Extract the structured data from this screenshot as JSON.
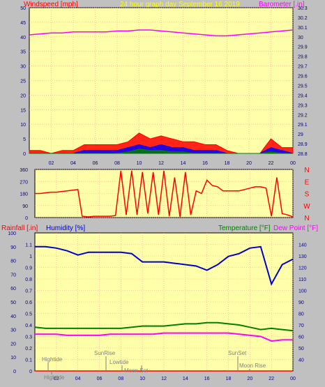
{
  "header": {
    "left_title": "Windspeed [mph]",
    "center_title": "24 hour graph day   September 16 2019",
    "right_title": "Barometer [.in]"
  },
  "colors": {
    "background": "#c0c0c0",
    "plot_background": "#ffffaa",
    "grid": "#ff9999",
    "wind": "#ff0000",
    "gust_peak": "#0000ff",
    "wind_low": "#008000",
    "barometer": "#ff00ff",
    "direction": "#ff0000",
    "humidity": "#0000cc",
    "temperature": "#008000",
    "dew_point": "#ff00ff",
    "rainfall": "#ff0000",
    "center_title": "#ffff00",
    "tick_label": "#000080",
    "tide_label": "#808080"
  },
  "chart_data": [
    {
      "type": "area",
      "title": "24 hour graph day   September 16 2019",
      "ylabel": "Windspeed [mph]",
      "y2label": "Barometer [.in]",
      "ylim": [
        0,
        50
      ],
      "y2lim": [
        28.8,
        30.3
      ],
      "yticks": [
        "0",
        "5",
        "10",
        "15",
        "20",
        "25",
        "30",
        "35",
        "40",
        "45",
        "50"
      ],
      "y2ticks": [
        "28.8",
        "28.9",
        "29",
        "29.1",
        "29.2",
        "29.3",
        "29.4",
        "29.5",
        "29.6",
        "29.7",
        "29.8",
        "29.9",
        "30",
        "30.1",
        "30.2",
        "30.3"
      ],
      "xticks": [
        "02",
        "04",
        "06",
        "08",
        "10",
        "12",
        "14",
        "16",
        "18",
        "20",
        "22",
        "00"
      ],
      "grid": true,
      "series": [
        {
          "name": "Barometer [.in]",
          "x": [
            0,
            1,
            2,
            3,
            4,
            5,
            6,
            7,
            8,
            9,
            10,
            11,
            12,
            13,
            14,
            15,
            16,
            17,
            18,
            19,
            20,
            21,
            22,
            23,
            24
          ],
          "values": [
            30.02,
            30.03,
            30.04,
            30.04,
            30.05,
            30.05,
            30.05,
            30.05,
            30.06,
            30.06,
            30.07,
            30.07,
            30.06,
            30.05,
            30.04,
            30.03,
            30.02,
            30.01,
            30.01,
            30.02,
            30.03,
            30.04,
            30.05,
            30.06,
            30.07
          ]
        },
        {
          "name": "Windspeed [mph]",
          "x": [
            0,
            1,
            2,
            3,
            4,
            5,
            6,
            7,
            8,
            9,
            10,
            11,
            12,
            13,
            14,
            15,
            16,
            17,
            18,
            19,
            20,
            21,
            22,
            23,
            24
          ],
          "values": [
            1,
            1,
            0,
            1,
            1,
            3,
            3,
            3,
            3,
            4,
            7,
            5,
            6,
            5,
            4,
            4,
            3,
            3,
            1,
            0,
            0,
            0,
            5,
            2,
            2
          ]
        },
        {
          "name": "Average",
          "x": [
            0,
            1,
            2,
            3,
            4,
            5,
            6,
            7,
            8,
            9,
            10,
            11,
            12,
            13,
            14,
            15,
            16,
            17,
            18,
            19,
            20,
            21,
            22,
            23,
            24
          ],
          "values": [
            0,
            0,
            0,
            0,
            0,
            1,
            1,
            1,
            1,
            2,
            3,
            2,
            3,
            2,
            2,
            1,
            1,
            1,
            0,
            0,
            0,
            0,
            2,
            1,
            0
          ]
        },
        {
          "name": "Low",
          "x": [
            0,
            1,
            2,
            3,
            4,
            5,
            6,
            7,
            8,
            9,
            10,
            11,
            12,
            13,
            14,
            15,
            16,
            17,
            18,
            19,
            20,
            21,
            22,
            23,
            24
          ],
          "values": [
            0,
            0,
            0,
            0,
            0,
            0,
            0,
            0,
            0,
            0.5,
            1.5,
            1,
            1,
            0.5,
            0.5,
            0,
            0,
            0,
            0,
            0,
            0,
            0,
            0.5,
            0,
            0
          ]
        }
      ]
    },
    {
      "type": "line",
      "ylim": [
        0,
        360
      ],
      "yticks": [
        "0",
        "90",
        "180",
        "270",
        "360"
      ],
      "compass": [
        "N",
        "W",
        "S",
        "E",
        "N"
      ],
      "xticks": [
        "02",
        "04",
        "06",
        "08",
        "10",
        "12",
        "14",
        "16",
        "18",
        "20",
        "22",
        "00"
      ],
      "grid": true,
      "series": [
        {
          "name": "Wind direction",
          "x": [
            0,
            0.5,
            1,
            1.5,
            2,
            2.5,
            3,
            3.5,
            4,
            4.4,
            5,
            5.5,
            6,
            6.5,
            7,
            7.5,
            8,
            8.5,
            9,
            9.5,
            10,
            10.5,
            11,
            11.5,
            12,
            12.5,
            13,
            13.5,
            14,
            14.5,
            15,
            15.5,
            16,
            16.5,
            17,
            17.5,
            18,
            18.5,
            19,
            19.5,
            20,
            20.5,
            21,
            21.5,
            22,
            22.5,
            23,
            23.5,
            24
          ],
          "values": [
            180,
            180,
            185,
            190,
            190,
            195,
            200,
            205,
            210,
            10,
            5,
            10,
            10,
            10,
            10,
            15,
            350,
            20,
            350,
            20,
            340,
            30,
            340,
            20,
            350,
            10,
            300,
            5,
            340,
            20,
            200,
            180,
            280,
            240,
            230,
            200,
            200,
            200,
            200,
            210,
            220,
            230,
            230,
            220,
            10,
            300,
            30,
            20,
            5
          ]
        }
      ]
    },
    {
      "type": "line",
      "ylabel": "Rainfall [.in]",
      "ylabel2": "Humidity [%]",
      "y2label": "Temperature [°F]",
      "y2label2": "Dew Point [°F]",
      "ylim": [
        0,
        1.2
      ],
      "humidity_lim": [
        0,
        100
      ],
      "temp_lim": [
        30,
        150
      ],
      "rain_ticks": [
        "0",
        "0.1",
        "0.2",
        "0.3",
        "0.4",
        "0.5",
        "0.6",
        "0.7",
        "0.8",
        "0.9",
        "1",
        "1.1"
      ],
      "humidity_ticks": [
        "0",
        "10",
        "20",
        "30",
        "40",
        "50",
        "60",
        "70",
        "80",
        "90",
        "100"
      ],
      "temp_ticks": [
        "40",
        "50",
        "60",
        "70",
        "80",
        "90",
        "100",
        "110",
        "120",
        "130",
        "140"
      ],
      "xticks": [
        "02",
        "04",
        "06",
        "08",
        "10",
        "12",
        "14",
        "16",
        "18",
        "20",
        "22",
        "00"
      ],
      "grid": true,
      "annotations": [
        "Hightide",
        "Hightide",
        "SunRise",
        "Lowtide",
        "Moon Set",
        "SunSet",
        "Moon Rise"
      ],
      "series": [
        {
          "name": "Humidity [%]",
          "x": [
            0,
            1,
            2,
            3,
            4,
            5,
            6,
            7,
            8,
            9,
            10,
            11,
            12,
            13,
            14,
            15,
            16,
            17,
            18,
            19,
            20,
            21,
            22,
            23,
            24
          ],
          "values": [
            90,
            90,
            89,
            87,
            84,
            86,
            86,
            86,
            86,
            85,
            79,
            79,
            79,
            78,
            77,
            76,
            73,
            77,
            83,
            85,
            89,
            90,
            63,
            77,
            81
          ]
        },
        {
          "name": "Temperature [°F]",
          "x": [
            0,
            1,
            2,
            3,
            4,
            5,
            6,
            7,
            8,
            9,
            10,
            11,
            12,
            13,
            14,
            15,
            16,
            17,
            18,
            19,
            20,
            21,
            22,
            23,
            24
          ],
          "values": [
            68,
            67,
            67,
            67,
            67,
            67,
            67,
            67,
            67,
            68,
            69,
            69,
            69,
            70,
            71,
            71,
            72,
            72,
            71,
            70,
            68,
            66,
            67,
            66,
            65
          ]
        },
        {
          "name": "Dew Point [°F]",
          "x": [
            0,
            1,
            2,
            3,
            4,
            5,
            6,
            7,
            8,
            9,
            10,
            11,
            12,
            13,
            14,
            15,
            16,
            17,
            18,
            19,
            20,
            21,
            22,
            23,
            24
          ],
          "values": [
            62,
            62,
            62,
            61,
            61,
            61,
            61,
            62,
            62,
            62,
            62,
            62,
            63,
            63,
            63,
            63,
            63,
            63,
            63,
            62,
            61,
            60,
            56,
            57,
            57
          ]
        },
        {
          "name": "Rainfall [.in]",
          "x": [
            0,
            24
          ],
          "values": [
            0,
            0
          ]
        }
      ]
    }
  ]
}
